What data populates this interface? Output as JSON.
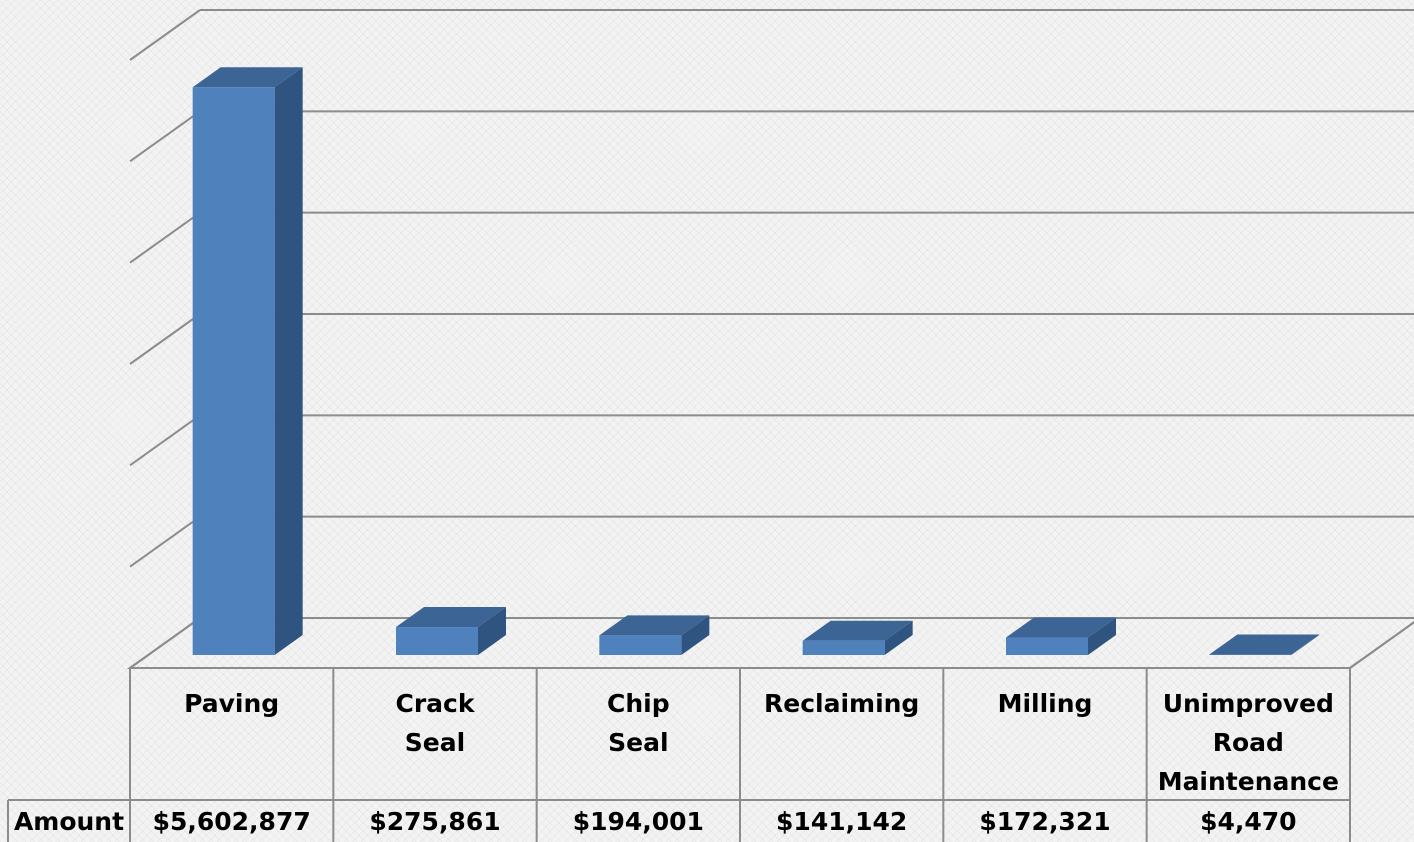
{
  "chart_data": {
    "type": "bar3d",
    "categories": [
      "Paving",
      "Crack Seal",
      "Chip Seal",
      "Reclaiming",
      "Milling",
      "Unimproved Road Maintenance"
    ],
    "series": [
      {
        "name": "Amount",
        "color": "#4f81bd",
        "values": [
          5602877,
          275861,
          194001,
          141142,
          172321,
          4470
        ],
        "value_labels": [
          "$5,602,877",
          "$275,861",
          "$194,001",
          "$141,142",
          "$172,321",
          "$4,470"
        ]
      }
    ],
    "ylim": [
      0,
      6000000
    ],
    "yticks": [
      0,
      1000000,
      2000000,
      3000000,
      4000000,
      5000000,
      6000000
    ],
    "grid": true
  }
}
